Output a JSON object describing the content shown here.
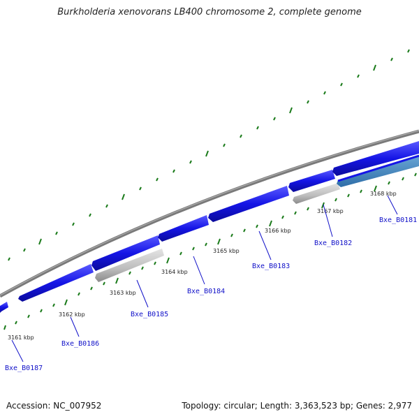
{
  "title": "Burkholderia xenovorans LB400 chromosome 2, complete genome",
  "accession": "Accession: NC_007952",
  "summary": "Topology: circular; Length: 3,363,523 bp; Genes: 2,977",
  "colors": {
    "backbone": "#7a7a7a",
    "cds_forward": "#1515e6",
    "cds_light": "#bdbdbd",
    "gene_label": "#1010c8",
    "tick": "#1a7a1a"
  },
  "scale_labels": [
    "3161 kbp",
    "3162 kbp",
    "3163 kbp",
    "3164 kbp",
    "3165 kbp",
    "3166 kbp",
    "3167 kbp",
    "3168 kbp"
  ],
  "gene_labels": [
    "Bxe_B0187",
    "Bxe_B0186",
    "Bxe_B0185",
    "Bxe_B0184",
    "Bxe_B0183",
    "Bxe_B0182",
    "Bxe_B0181"
  ]
}
